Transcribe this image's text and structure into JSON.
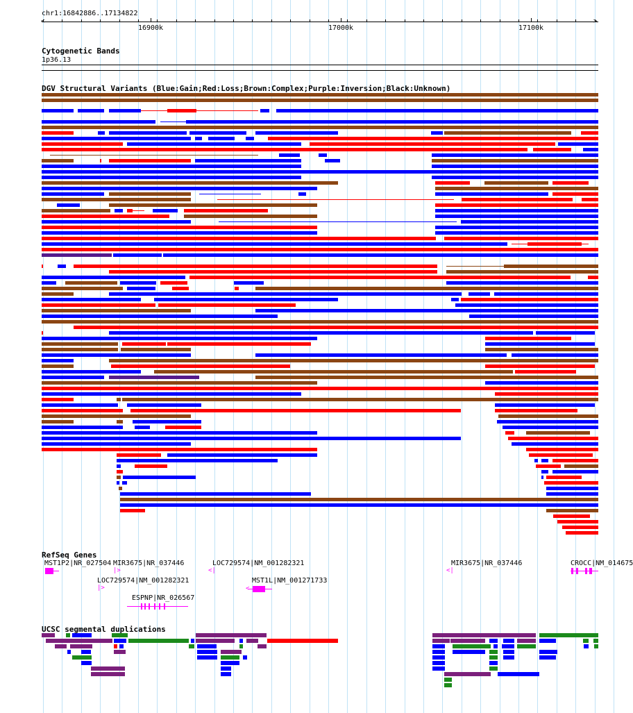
{
  "ruler": {
    "range_label": "chr1:16842886..17134822",
    "ticks": [
      {
        "label": "16900k"
      },
      {
        "label": "17000k"
      },
      {
        "label": "17100k"
      }
    ]
  },
  "cytoband": {
    "title": "Cytogenetic Bands",
    "band": "1p36.13"
  },
  "sv": {
    "title": "DGV Structural Variants (Blue:Gain;Red:Loss;Brown:Complex;Purple:Inversion;Black:Unknown)",
    "colors": {
      "gain": "#0000ff",
      "loss": "#ff0000",
      "complex": "#8b4513",
      "inversion": "#551a8b",
      "unknown": "#000000"
    }
  },
  "refseq": {
    "title": "RefSeq Genes",
    "genes": [
      {
        "label": "MST1P2|NR_027504"
      },
      {
        "label": "MIR3675|NR_037446"
      },
      {
        "label": "LOC729574|NM_001282321"
      },
      {
        "label": "MIR3675|NR_037446"
      },
      {
        "label": "CROCC|NM_014675"
      },
      {
        "label": "LOC729574|NM_001282321"
      },
      {
        "label": "MST1L|NM_001271733"
      },
      {
        "label": "ESPNP|NR_026567"
      }
    ],
    "color": "#ff00ff"
  },
  "segdup": {
    "title": "UCSC segmental duplications",
    "colors": {
      "purple": "#7b1f7b",
      "green": "#1b8a1b",
      "blue": "#0000ff",
      "red": "#ff0000"
    }
  }
}
